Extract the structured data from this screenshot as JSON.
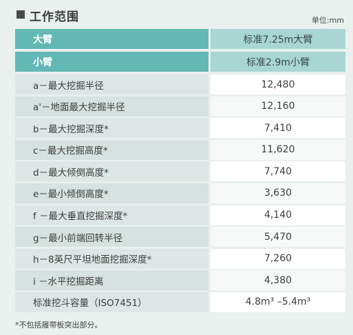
{
  "title": "工作范围",
  "unit": "单位:mm",
  "header_rows": [
    {
      "label": "大臂",
      "value": "标准7.25m大臂"
    },
    {
      "label": "小臂",
      "value": "标准2.9m小臂"
    }
  ],
  "rows": [
    {
      "label": "a－最大挖掘半径",
      "value": "12,480"
    },
    {
      "label": "a'－地面最大挖掘半径",
      "value": "12,160"
    },
    {
      "label": "b－最大挖掘深度*",
      "value": "7,410"
    },
    {
      "label": "c－最大挖掘高度*",
      "value": "11,620"
    },
    {
      "label": "d－最大倾倒高度*",
      "value": "7,740"
    },
    {
      "label": "e－最小倾倒高度*",
      "value": "3,630"
    },
    {
      "label": "f －最大垂直挖掘深度*",
      "value": "4,140"
    },
    {
      "label": "g－最小前端回转半径",
      "value": "5,470"
    },
    {
      "label": "h－8英尺平坦地面挖掘深度*",
      "value": "7,260"
    },
    {
      "label": "i －水平挖掘距离",
      "value": "4,380"
    },
    {
      "label": "标准挖斗容量（ISO7451）",
      "value": "4.8m³ –5.4m³"
    }
  ],
  "footnote": "*不包括履带板突出部分。",
  "colors": {
    "background": "#e9f0ee",
    "header_left": "#63b8b5",
    "header_right": "#a7d6d3",
    "data_left": "#dce7e5",
    "data_right": "#ffffff"
  }
}
